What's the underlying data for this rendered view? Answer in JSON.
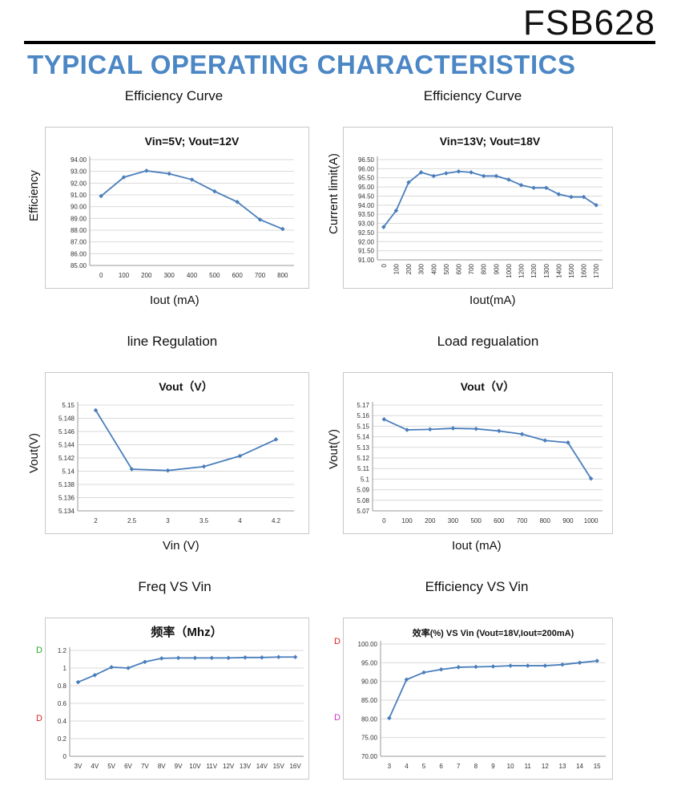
{
  "header": {
    "part_number": "FSB628",
    "section_title": "TYPICAL OPERATING CHARACTERISTICS"
  },
  "panels": [
    {
      "heading": "Efficiency Curve",
      "xlabel": "Iout (mA)",
      "ylabel": "Efficiency"
    },
    {
      "heading": "Efficiency Curve",
      "xlabel": "Iout(mA)",
      "ylabel": "Current limit(A)"
    },
    {
      "heading": "line Regulation",
      "xlabel": "Vin (V)",
      "ylabel": "Vout(V)"
    },
    {
      "heading": "Load regualation",
      "xlabel": "Iout (mA)",
      "ylabel": "Vout(V)"
    },
    {
      "heading": "Freq VS Vin",
      "xlabel": "",
      "ylabel": ""
    },
    {
      "heading": "Efficiency VS Vin",
      "xlabel": "",
      "ylabel": ""
    }
  ],
  "marks": [
    {
      "glyph": "D",
      "color": "#22aa22"
    },
    {
      "glyph": "D",
      "color": "#dd2222"
    },
    {
      "glyph": "D",
      "color": "#dd2222"
    },
    {
      "glyph": "D",
      "color": "#cc33cc"
    }
  ],
  "chart_data": [
    {
      "type": "line",
      "title": "Vin=5V; Vout=12V",
      "categories": [
        "0",
        "100",
        "200",
        "300",
        "400",
        "500",
        "600",
        "700",
        "800"
      ],
      "values": [
        90.9,
        92.5,
        93.05,
        92.8,
        92.3,
        91.3,
        90.4,
        88.9,
        88.1
      ],
      "y_ticks": [
        "85.00",
        "86.00",
        "87.00",
        "88.00",
        "89.00",
        "90.00",
        "91.00",
        "92.00",
        "93.00",
        "94.00"
      ],
      "ylim": [
        85,
        94
      ],
      "x_tick_rotation": 0,
      "color": "#4a7ebb",
      "grid": true
    },
    {
      "type": "line",
      "title": "Vin=13V; Vout=18V",
      "categories": [
        "0",
        "100",
        "200",
        "300",
        "400",
        "500",
        "600",
        "700",
        "800",
        "900",
        "1000",
        "1200",
        "1200",
        "1300",
        "1400",
        "1500",
        "1600",
        "1700"
      ],
      "values": [
        92.8,
        93.7,
        95.25,
        95.8,
        95.6,
        95.75,
        95.85,
        95.8,
        95.6,
        95.6,
        95.4,
        95.1,
        94.95,
        94.95,
        94.6,
        94.45,
        94.45,
        94.0
      ],
      "y_ticks": [
        "91.00",
        "91.50",
        "92.00",
        "92.50",
        "93.00",
        "93.50",
        "94.00",
        "94.50",
        "95.00",
        "95.50",
        "96.00",
        "96.50"
      ],
      "ylim": [
        91,
        96.5
      ],
      "x_tick_rotation": -90,
      "color": "#4a7ebb",
      "grid": true
    },
    {
      "type": "line",
      "title": "Vout（V）",
      "categories": [
        "2",
        "2.5",
        "3",
        "3.5",
        "4",
        "4.2"
      ],
      "values": [
        5.1492,
        5.1403,
        5.1401,
        5.1407,
        5.1423,
        5.1448
      ],
      "y_ticks": [
        "5.134",
        "5.136",
        "5.138",
        "5.14",
        "5.142",
        "5.144",
        "5.146",
        "5.148",
        "5.15"
      ],
      "ylim": [
        5.134,
        5.15
      ],
      "x_tick_rotation": 0,
      "color": "#4a7ebb",
      "grid": true
    },
    {
      "type": "line",
      "title": "Vout（V）",
      "categories": [
        "0",
        "100",
        "200",
        "300",
        "500",
        "600",
        "700",
        "800",
        "900",
        "1000"
      ],
      "values": [
        5.1565,
        5.1465,
        5.147,
        5.148,
        5.1475,
        5.1455,
        5.1425,
        5.1365,
        5.1345,
        5.1005
      ],
      "y_ticks": [
        "5.07",
        "5.08",
        "5.09",
        "5.1",
        "5.11",
        "5.12",
        "5.13",
        "5.14",
        "5.15",
        "5.16",
        "5.17"
      ],
      "ylim": [
        5.07,
        5.17
      ],
      "x_tick_rotation": 0,
      "color": "#4a7ebb",
      "grid": true
    },
    {
      "type": "line",
      "title": "频率（Mhz）",
      "categories": [
        "3V",
        "4V",
        "5V",
        "6V",
        "7V",
        "8V",
        "9V",
        "10V",
        "11V",
        "12V",
        "13V",
        "14V",
        "15V",
        "16V"
      ],
      "values": [
        0.84,
        0.92,
        1.01,
        1.0,
        1.07,
        1.11,
        1.115,
        1.115,
        1.115,
        1.115,
        1.12,
        1.12,
        1.125,
        1.125
      ],
      "y_ticks": [
        "0",
        "0.2",
        "0.4",
        "0.6",
        "0.8",
        "1",
        "1.2"
      ],
      "ylim": [
        0,
        1.2
      ],
      "x_tick_rotation": 0,
      "color": "#4a7ebb",
      "grid": true
    },
    {
      "type": "line",
      "title": "效率(%) VS  Vin (Vout=18V,Iout=200mA)",
      "categories": [
        "3",
        "4",
        "5",
        "6",
        "7",
        "8",
        "9",
        "10",
        "11",
        "12",
        "13",
        "14",
        "15"
      ],
      "values": [
        80.2,
        90.5,
        92.4,
        93.2,
        93.8,
        93.9,
        94.0,
        94.2,
        94.2,
        94.2,
        94.5,
        95.0,
        95.5
      ],
      "y_ticks": [
        "70.00",
        "75.00",
        "80.00",
        "85.00",
        "90.00",
        "95.00",
        "100.00"
      ],
      "ylim": [
        70,
        100
      ],
      "x_tick_rotation": 0,
      "color": "#4a7ebb",
      "grid": true
    }
  ]
}
